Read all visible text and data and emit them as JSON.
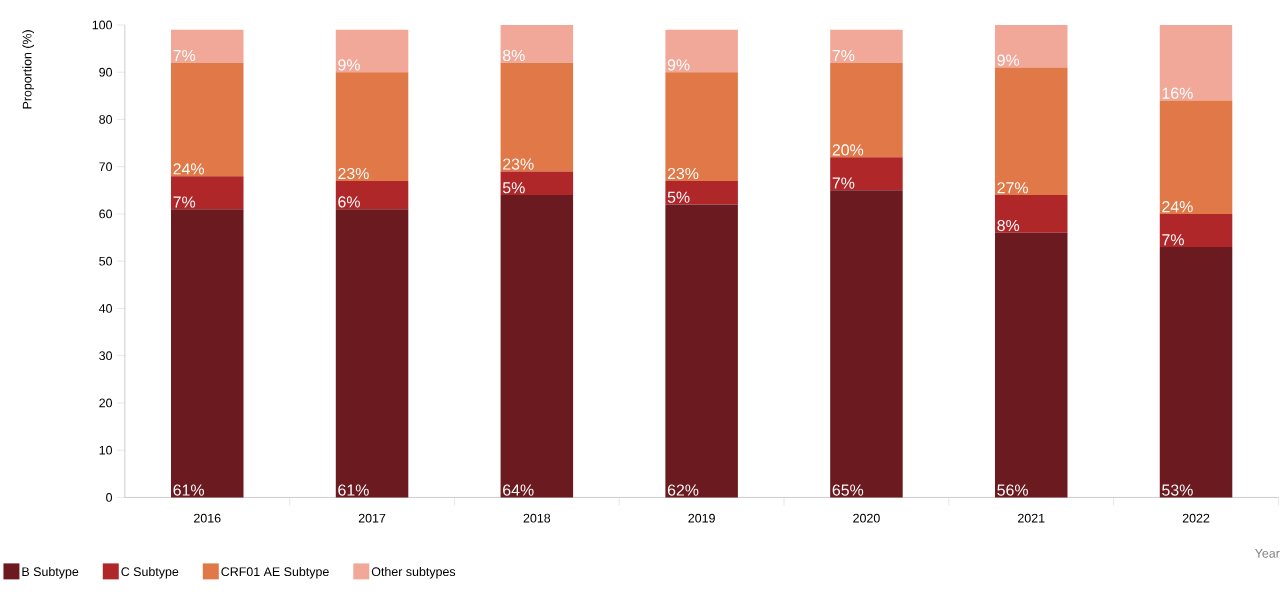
{
  "chart_data": {
    "type": "bar",
    "stacked": true,
    "ylabel": "Proportion (%)",
    "xlabel": "Year",
    "categories": [
      "2016",
      "2017",
      "2018",
      "2019",
      "2020",
      "2021",
      "2022"
    ],
    "ylim": [
      0,
      100
    ],
    "yticks": [
      0,
      10,
      20,
      30,
      40,
      50,
      60,
      70,
      80,
      90,
      100
    ],
    "legend": "bottom",
    "series": [
      {
        "name": "B Subtype",
        "color": "#6b1a20",
        "values": [
          61,
          61,
          64,
          62,
          65,
          56,
          53
        ],
        "value_labels": [
          "61%",
          "61%",
          "64%",
          "62%",
          "65%",
          "56%",
          "53%"
        ]
      },
      {
        "name": "C Subtype",
        "color": "#b0272a",
        "values": [
          7,
          6,
          5,
          5,
          7,
          8,
          7
        ],
        "value_labels": [
          "7%",
          "6%",
          "5%",
          "5%",
          "7%",
          "8%",
          "7%"
        ]
      },
      {
        "name": "CRF01 AE Subtype",
        "color": "#e07848",
        "values": [
          24,
          23,
          23,
          23,
          20,
          27,
          24
        ],
        "value_labels": [
          "24%",
          "23%",
          "23%",
          "23%",
          "20%",
          "27%",
          "24%"
        ]
      },
      {
        "name": "Other subtypes",
        "color": "#f2a898",
        "values": [
          7,
          9,
          8,
          9,
          7,
          9,
          16
        ],
        "value_labels": [
          "7%",
          "9%",
          "8%",
          "9%",
          "7%",
          "9%",
          "16%"
        ]
      }
    ]
  }
}
